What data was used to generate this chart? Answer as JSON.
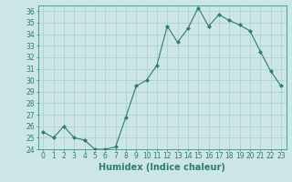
{
  "x": [
    0,
    1,
    2,
    3,
    4,
    5,
    6,
    7,
    8,
    9,
    10,
    11,
    12,
    13,
    14,
    15,
    16,
    17,
    18,
    19,
    20,
    21,
    22,
    23
  ],
  "y": [
    25.5,
    25.0,
    26.0,
    25.0,
    24.8,
    24.0,
    24.0,
    24.2,
    26.8,
    29.5,
    30.0,
    31.3,
    34.7,
    33.3,
    34.5,
    36.3,
    34.7,
    35.7,
    35.2,
    34.8,
    34.3,
    32.5,
    30.8,
    29.5
  ],
  "line_color": "#2e7d6e",
  "marker": "D",
  "marker_size": 2.0,
  "bg_color": "#cce5e5",
  "grid_color": "#aacece",
  "xlabel": "Humidex (Indice chaleur)",
  "ylim": [
    24,
    36.5
  ],
  "xlim": [
    -0.5,
    23.5
  ],
  "yticks": [
    24,
    25,
    26,
    27,
    28,
    29,
    30,
    31,
    32,
    33,
    34,
    35,
    36
  ],
  "xticks": [
    0,
    1,
    2,
    3,
    4,
    5,
    6,
    7,
    8,
    9,
    10,
    11,
    12,
    13,
    14,
    15,
    16,
    17,
    18,
    19,
    20,
    21,
    22,
    23
  ],
  "tick_color": "#2e7d6e",
  "label_color": "#2e7d6e",
  "xlabel_fontsize": 7,
  "tick_fontsize": 5.5,
  "linewidth": 0.8
}
